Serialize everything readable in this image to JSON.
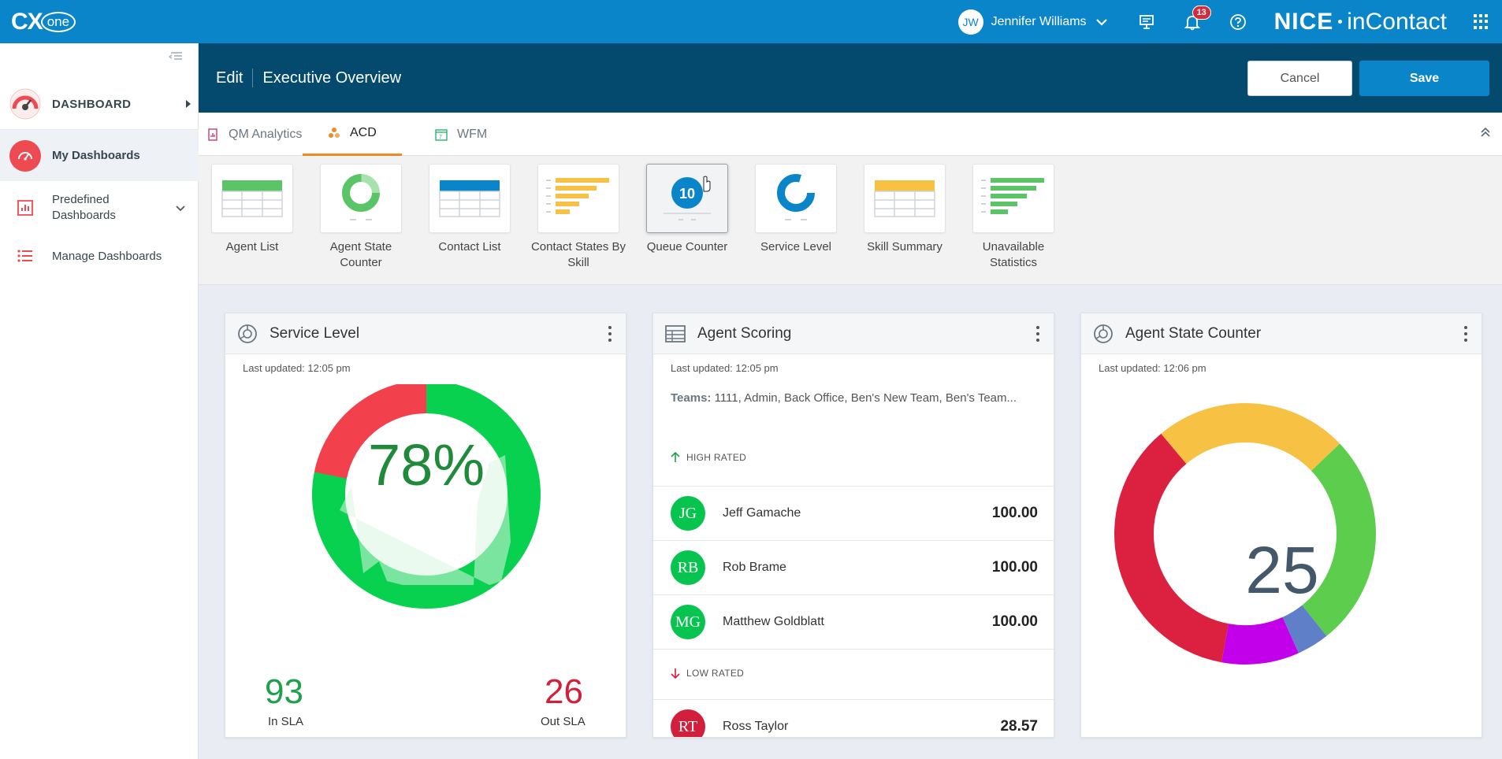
{
  "topbar": {
    "logo_cx": "CX",
    "logo_one": "one",
    "user_initials": "JW",
    "user_name": "Jennifer Williams",
    "notifications_count": "13",
    "brand_nice": "NICE",
    "brand_incontact": "inContact"
  },
  "sidebar": {
    "dashboard_label": "DASHBOARD",
    "my_dashboards": "My Dashboards",
    "predefined_line1": "Predefined",
    "predefined_line2": "Dashboards",
    "manage": "Manage Dashboards"
  },
  "header": {
    "edit_label": "Edit",
    "title": "Executive Overview",
    "cancel_label": "Cancel",
    "save_label": "Save"
  },
  "tabs": [
    {
      "label": "QM Analytics",
      "icon": "chart-doc-icon"
    },
    {
      "label": "ACD",
      "icon": "acd-icon",
      "active": true
    },
    {
      "label": "WFM",
      "icon": "calendar-icon"
    }
  ],
  "widgets": [
    {
      "line1": "Agent List",
      "line2": ""
    },
    {
      "line1": "Agent State",
      "line2": "Counter"
    },
    {
      "line1": "Contact List",
      "line2": ""
    },
    {
      "line1": "Contact States By",
      "line2": "Skill"
    },
    {
      "line1": "Queue Counter",
      "line2": "",
      "badge": "10"
    },
    {
      "line1": "Service Level",
      "line2": ""
    },
    {
      "line1": "Skill Summary",
      "line2": ""
    },
    {
      "line1": "Unavailable",
      "line2": "Statistics"
    }
  ],
  "service_level": {
    "title": "Service Level",
    "updated": "Last updated: 12:05 pm",
    "percent": "78%",
    "in_sla_value": "93",
    "in_sla_label": "In SLA",
    "out_sla_value": "26",
    "out_sla_label": "Out SLA",
    "colors": {
      "in": "#07d14e",
      "out": "#f2404d"
    }
  },
  "agent_scoring": {
    "title": "Agent Scoring",
    "updated": "Last updated: 12:05 pm",
    "teams_label": "Teams:",
    "teams_value": "1111, Admin, Back Office, Ben's New Team, Ben's Team...",
    "high_rated_label": "HIGH RATED",
    "low_rated_label": "LOW RATED",
    "high": [
      {
        "initials": "JG",
        "name": "Jeff Gamache",
        "score": "100.00"
      },
      {
        "initials": "RB",
        "name": "Rob Brame",
        "score": "100.00"
      },
      {
        "initials": "MG",
        "name": "Matthew Goldblatt",
        "score": "100.00"
      }
    ],
    "low": [
      {
        "initials": "RT",
        "name": "Ross Taylor",
        "score": "28.57"
      }
    ]
  },
  "agent_state_counter": {
    "title": "Agent State Counter",
    "updated": "Last updated: 12:06 pm",
    "total": "25"
  },
  "chart_data": {
    "type": "pie",
    "title": "Agent State Counter",
    "total": 25,
    "slices": [
      {
        "value": 0.3,
        "color": "#f7c243"
      },
      {
        "value": 0.33,
        "color": "#5dcd4d"
      },
      {
        "value": 0.05,
        "color": "#5f80c8"
      },
      {
        "value": 0.12,
        "color": "#c200ea"
      },
      {
        "value": 0.45,
        "color": "#dc2140"
      }
    ]
  }
}
